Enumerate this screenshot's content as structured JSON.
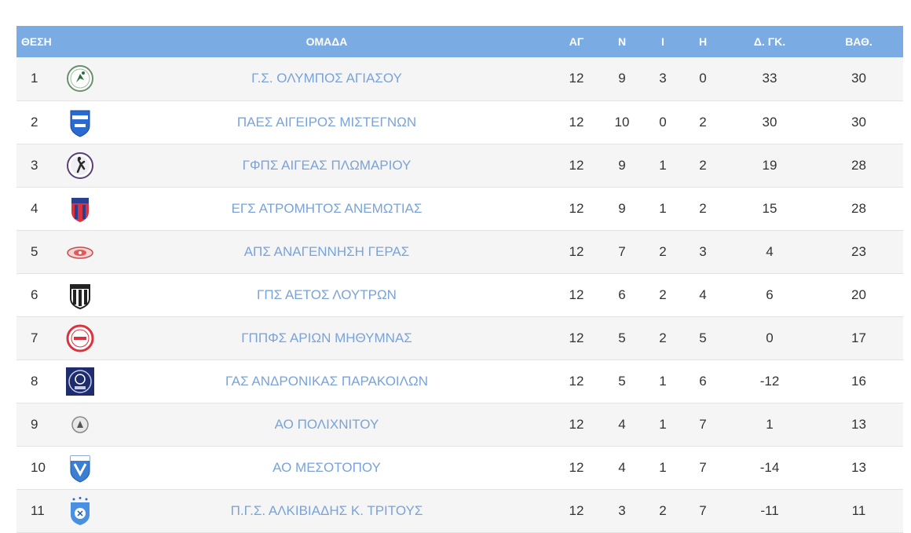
{
  "table": {
    "headers": {
      "pos": "ΘΕΣΗ",
      "team": "ΟΜΑΔΑ",
      "played": "ΑΓ",
      "wins": "Ν",
      "draws": "Ι",
      "losses": "Η",
      "goal_diff": "Δ. ΓΚ.",
      "points": "ΒΑΘ."
    },
    "colors": {
      "header_bg": "#7aabe3",
      "team_text": "#7aa3d8",
      "row_stripe": "#f5f5f5"
    },
    "rows": [
      {
        "pos": "1",
        "team": "Γ.Σ. ΟΛΥΜΠΟΣ ΑΓΙΑΣΟΥ",
        "logo": "olympos-crest-icon",
        "played": "12",
        "wins": "9",
        "draws": "3",
        "losses": "0",
        "goal_diff": "33",
        "points": "30"
      },
      {
        "pos": "2",
        "team": "ΠΑΕΣ ΑΙΓΕΙΡΟΣ ΜΙΣΤΕΓΝΩΝ",
        "logo": "aigeiros-crest-icon",
        "played": "12",
        "wins": "10",
        "draws": "0",
        "losses": "2",
        "goal_diff": "30",
        "points": "30"
      },
      {
        "pos": "3",
        "team": "ΓΦΠΣ ΑΙΓΕΑΣ ΠΛΩΜΑΡΙΟΥ",
        "logo": "aigeas-crest-icon",
        "played": "12",
        "wins": "9",
        "draws": "1",
        "losses": "2",
        "goal_diff": "19",
        "points": "28"
      },
      {
        "pos": "4",
        "team": "ΕΓΣ ΑΤΡΟΜΗΤΟΣ ΑΝΕΜΩΤΙΑΣ",
        "logo": "atromitos-crest-icon",
        "played": "12",
        "wins": "9",
        "draws": "1",
        "losses": "2",
        "goal_diff": "15",
        "points": "28"
      },
      {
        "pos": "5",
        "team": "ΑΠΣ ΑΝΑΓΕΝΝΗΣΗ ΓΕΡΑΣ",
        "logo": "anagennisi-crest-icon",
        "played": "12",
        "wins": "7",
        "draws": "2",
        "losses": "3",
        "goal_diff": "4",
        "points": "23"
      },
      {
        "pos": "6",
        "team": "ΓΠΣ ΑΕΤΟΣ ΛΟΥΤΡΩΝ",
        "logo": "aetos-crest-icon",
        "played": "12",
        "wins": "6",
        "draws": "2",
        "losses": "4",
        "goal_diff": "6",
        "points": "20"
      },
      {
        "pos": "7",
        "team": "ΓΠΠΦΣ ΑΡΙΩΝ ΜΗΘΥΜΝΑΣ",
        "logo": "arion-crest-icon",
        "played": "12",
        "wins": "5",
        "draws": "2",
        "losses": "5",
        "goal_diff": "0",
        "points": "17"
      },
      {
        "pos": "8",
        "team": "ΓΑΣ ΑΝΔΡΟΝΙΚΑΣ ΠΑΡΑΚΟΙΛΩΝ",
        "logo": "andronikas-crest-icon",
        "played": "12",
        "wins": "5",
        "draws": "1",
        "losses": "6",
        "goal_diff": "-12",
        "points": "16"
      },
      {
        "pos": "9",
        "team": "ΑΟ ΠΟΛΙΧΝΙΤΟΥ",
        "logo": "polichnitos-crest-icon",
        "played": "12",
        "wins": "4",
        "draws": "1",
        "losses": "7",
        "goal_diff": "1",
        "points": "13"
      },
      {
        "pos": "10",
        "team": "ΑΟ ΜΕΣΟΤΟΠΟΥ",
        "logo": "mesotopos-crest-icon",
        "played": "12",
        "wins": "4",
        "draws": "1",
        "losses": "7",
        "goal_diff": "-14",
        "points": "13"
      },
      {
        "pos": "11",
        "team": "Π.Γ.Σ. ΑΛΚΙΒΙΑΔΗΣ Κ. ΤΡΙΤΟΥΣ",
        "logo": "alkiviadis-crest-icon",
        "played": "12",
        "wins": "3",
        "draws": "2",
        "losses": "7",
        "goal_diff": "-11",
        "points": "11"
      }
    ]
  }
}
